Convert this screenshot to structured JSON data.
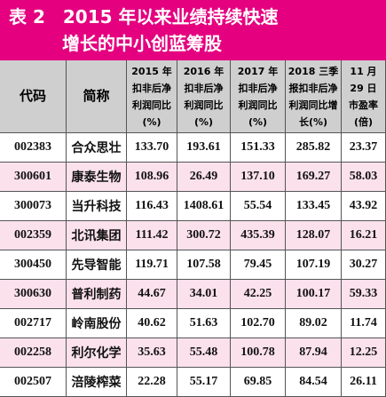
{
  "header": {
    "title_lines": [
      "表 2　2015 年以来业绩持续快速",
      "增长的中小创蓝筹股"
    ]
  },
  "table": {
    "columns": [
      [
        "代码"
      ],
      [
        "简称"
      ],
      [
        "2015 年",
        "扣非后净",
        "利润同比",
        "(%)"
      ],
      [
        "2016 年",
        "扣非后净",
        "利润同比",
        "(%)"
      ],
      [
        "2017 年",
        "扣非后净",
        "利润同比",
        "(%)"
      ],
      [
        "2018 三季",
        "报扣非后净",
        "利润同比增",
        "长(%)"
      ],
      [
        "11 月",
        "29 日",
        "市盈率",
        "(倍)"
      ]
    ],
    "rows": [
      [
        "002383",
        "合众思壮",
        "133.70",
        "193.61",
        "151.33",
        "285.82",
        "23.37"
      ],
      [
        "300601",
        "康泰生物",
        "108.96",
        "26.49",
        "137.10",
        "169.27",
        "58.03"
      ],
      [
        "300073",
        "当升科技",
        "116.43",
        "1408.61",
        "55.54",
        "133.45",
        "43.92"
      ],
      [
        "002359",
        "北讯集团",
        "111.42",
        "300.72",
        "435.39",
        "128.07",
        "16.21"
      ],
      [
        "300450",
        "先导智能",
        "119.71",
        "107.58",
        "79.45",
        "107.19",
        "30.27"
      ],
      [
        "300630",
        "普利制药",
        "44.67",
        "34.01",
        "42.25",
        "100.17",
        "59.33"
      ],
      [
        "002717",
        "岭南股份",
        "40.62",
        "51.63",
        "102.70",
        "89.02",
        "11.74"
      ],
      [
        "002258",
        "利尔化学",
        "35.63",
        "55.48",
        "100.78",
        "87.94",
        "12.25"
      ],
      [
        "002507",
        "涪陵榨菜",
        "22.28",
        "55.17",
        "69.85",
        "84.54",
        "26.11"
      ]
    ]
  }
}
